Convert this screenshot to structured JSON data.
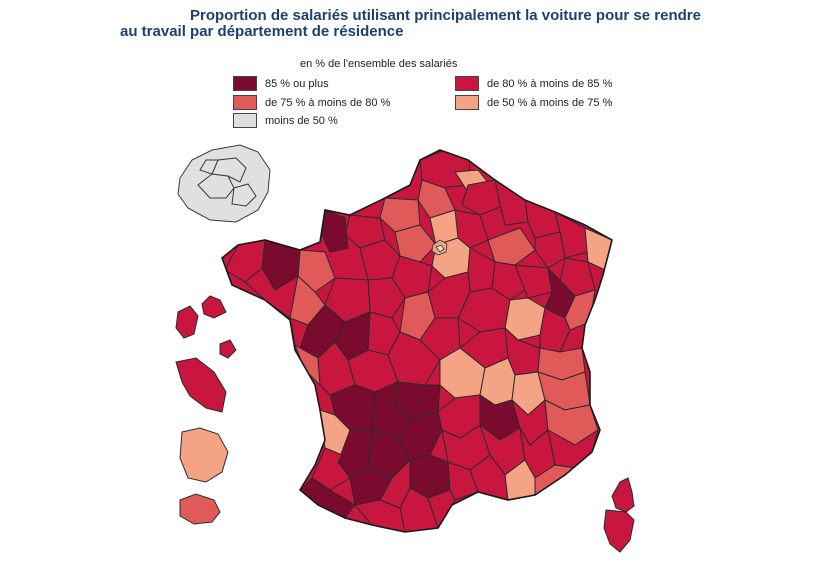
{
  "title": {
    "line1": "Proportion de salariés utilisant principalement la voiture pour se rendre",
    "line2": "au travail par département de résidence"
  },
  "legend": {
    "caption": "en % de l'ensemble des salariés",
    "items": [
      {
        "label": "85 % ou plus",
        "color": "#7a0a2e"
      },
      {
        "label": "de 80 % à moins de 85 %",
        "color": "#c9163f"
      },
      {
        "label": "de 75 % à moins de 80 %",
        "color": "#e05a5a"
      },
      {
        "label": "de 50 % à moins de 75 %",
        "color": "#f4a384"
      },
      {
        "label": "moins de 50 %",
        "color": "#e0e0e0"
      }
    ]
  }
}
